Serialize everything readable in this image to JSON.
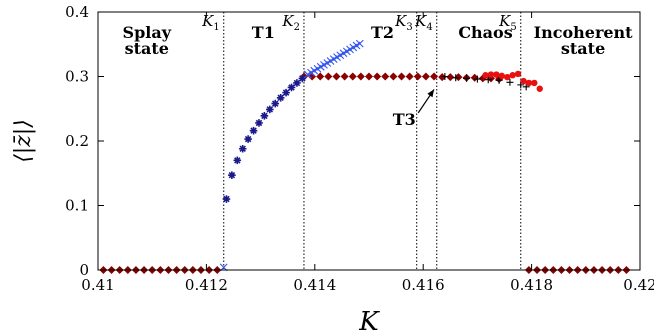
{
  "chart_data": {
    "type": "scatter",
    "xlabel": "K",
    "ylabel": "⟨|z̄|⟩",
    "xlim": [
      0.41,
      0.42
    ],
    "ylim": [
      0,
      0.4
    ],
    "xticks": [
      {
        "value": 0.41,
        "label": "0.41"
      },
      {
        "value": 0.412,
        "label": "0.412"
      },
      {
        "value": 0.414,
        "label": "0.414"
      },
      {
        "value": 0.416,
        "label": "0.416"
      },
      {
        "value": 0.418,
        "label": "0.418"
      },
      {
        "value": 0.42,
        "label": "0.42"
      }
    ],
    "yticks": [
      {
        "value": 0,
        "label": "0"
      },
      {
        "value": 0.1,
        "label": "0.1"
      },
      {
        "value": 0.2,
        "label": "0.2"
      },
      {
        "value": 0.3,
        "label": "0.3"
      },
      {
        "value": 0.4,
        "label": "0.4"
      }
    ],
    "grid": false,
    "threshold_lines": [
      {
        "label": "K",
        "sub": "1",
        "x": 0.41232
      },
      {
        "label": "K",
        "sub": "2",
        "x": 0.4138
      },
      {
        "label": "K",
        "sub": "3",
        "x": 0.41588
      },
      {
        "label": "K",
        "sub": "4",
        "x": 0.41625
      },
      {
        "label": "K",
        "sub": "5",
        "x": 0.4178
      }
    ],
    "region_labels": [
      {
        "lines": [
          "Splay",
          "state"
        ],
        "x": 0.4109,
        "y": 0.36
      },
      {
        "lines": [
          "T1"
        ],
        "x": 0.41305,
        "y": 0.36
      },
      {
        "lines": [
          "T2"
        ],
        "x": 0.41525,
        "y": 0.36
      },
      {
        "lines": [
          "Chaos"
        ],
        "x": 0.41715,
        "y": 0.36
      },
      {
        "lines": [
          "Incoherent",
          "state"
        ],
        "x": 0.41895,
        "y": 0.36
      }
    ],
    "annotation": {
      "text": "T3",
      "text_x": 0.41565,
      "text_y": 0.225,
      "arrow_x": 0.4162,
      "arrow_y": 0.28
    },
    "series": [
      {
        "marker": "diamond",
        "color": "#8b0000",
        "points": [
          [
            0.4101,
            0
          ],
          [
            0.41025,
            0
          ],
          [
            0.4104,
            0
          ],
          [
            0.41055,
            0
          ],
          [
            0.4107,
            0
          ],
          [
            0.41085,
            0
          ],
          [
            0.411,
            0
          ],
          [
            0.41115,
            0
          ],
          [
            0.4113,
            0
          ],
          [
            0.41145,
            0
          ],
          [
            0.4116,
            0
          ],
          [
            0.41175,
            0
          ],
          [
            0.4119,
            0
          ],
          [
            0.41205,
            0
          ],
          [
            0.4122,
            0
          ],
          [
            0.4138,
            0.3
          ],
          [
            0.41395,
            0.3
          ],
          [
            0.4141,
            0.3
          ],
          [
            0.41425,
            0.3
          ],
          [
            0.4144,
            0.3
          ],
          [
            0.41455,
            0.3
          ],
          [
            0.4147,
            0.3
          ],
          [
            0.41485,
            0.3
          ],
          [
            0.415,
            0.3
          ],
          [
            0.41515,
            0.3
          ],
          [
            0.4153,
            0.3
          ],
          [
            0.41545,
            0.3
          ],
          [
            0.4156,
            0.3
          ],
          [
            0.41575,
            0.3
          ],
          [
            0.4159,
            0.3
          ],
          [
            0.41605,
            0.3
          ],
          [
            0.4162,
            0.3
          ],
          [
            0.41635,
            0.299
          ],
          [
            0.4165,
            0.299
          ],
          [
            0.41665,
            0.299
          ],
          [
            0.4168,
            0.298
          ],
          [
            0.41695,
            0.298
          ],
          [
            0.4171,
            0.297
          ],
          [
            0.41725,
            0.297
          ],
          [
            0.4174,
            0.296
          ],
          [
            0.41795,
            0
          ],
          [
            0.4181,
            0
          ],
          [
            0.41825,
            0
          ],
          [
            0.4184,
            0
          ],
          [
            0.41855,
            0
          ],
          [
            0.4187,
            0
          ],
          [
            0.41885,
            0
          ],
          [
            0.419,
            0
          ],
          [
            0.41915,
            0
          ],
          [
            0.4193,
            0
          ],
          [
            0.41945,
            0
          ],
          [
            0.4196,
            0
          ],
          [
            0.41975,
            0
          ]
        ]
      },
      {
        "marker": "star",
        "color": "#1a1a8c",
        "points": [
          [
            0.41237,
            0.11
          ],
          [
            0.41247,
            0.147
          ],
          [
            0.41257,
            0.17
          ],
          [
            0.41267,
            0.188
          ],
          [
            0.41277,
            0.203
          ],
          [
            0.41287,
            0.216
          ],
          [
            0.41297,
            0.228
          ],
          [
            0.41307,
            0.239
          ],
          [
            0.41317,
            0.249
          ],
          [
            0.41327,
            0.258
          ],
          [
            0.41337,
            0.267
          ],
          [
            0.41347,
            0.275
          ],
          [
            0.41357,
            0.283
          ],
          [
            0.41367,
            0.29
          ],
          [
            0.41377,
            0.297
          ]
        ]
      },
      {
        "marker": "x",
        "color": "#3355ee",
        "points": [
          [
            0.41232,
            0.004
          ],
          [
            0.41387,
            0.303
          ],
          [
            0.41393,
            0.306
          ],
          [
            0.41399,
            0.309
          ],
          [
            0.41405,
            0.312
          ],
          [
            0.41411,
            0.315
          ],
          [
            0.41417,
            0.318
          ],
          [
            0.41423,
            0.321
          ],
          [
            0.41429,
            0.324
          ],
          [
            0.41435,
            0.327
          ],
          [
            0.41441,
            0.33
          ],
          [
            0.41447,
            0.333
          ],
          [
            0.41453,
            0.336
          ],
          [
            0.41459,
            0.339
          ],
          [
            0.41465,
            0.342
          ],
          [
            0.41471,
            0.345
          ],
          [
            0.41477,
            0.348
          ],
          [
            0.41483,
            0.351
          ]
        ]
      },
      {
        "marker": "plus",
        "color": "#000000",
        "points": [
          [
            0.4164,
            0.3
          ],
          [
            0.4166,
            0.298
          ],
          [
            0.4168,
            0.297
          ],
          [
            0.417,
            0.296
          ],
          [
            0.4172,
            0.295
          ],
          [
            0.4174,
            0.294
          ],
          [
            0.4176,
            0.291
          ],
          [
            0.4178,
            0.287
          ],
          [
            0.4179,
            0.284
          ]
        ]
      },
      {
        "marker": "circle",
        "color": "#e81010",
        "points": [
          [
            0.41715,
            0.302
          ],
          [
            0.41725,
            0.303
          ],
          [
            0.41735,
            0.303
          ],
          [
            0.41745,
            0.301
          ],
          [
            0.41755,
            0.299
          ],
          [
            0.41765,
            0.302
          ],
          [
            0.41775,
            0.304
          ],
          [
            0.41785,
            0.293
          ],
          [
            0.41795,
            0.29
          ],
          [
            0.41805,
            0.29
          ],
          [
            0.41815,
            0.281
          ]
        ]
      }
    ]
  }
}
